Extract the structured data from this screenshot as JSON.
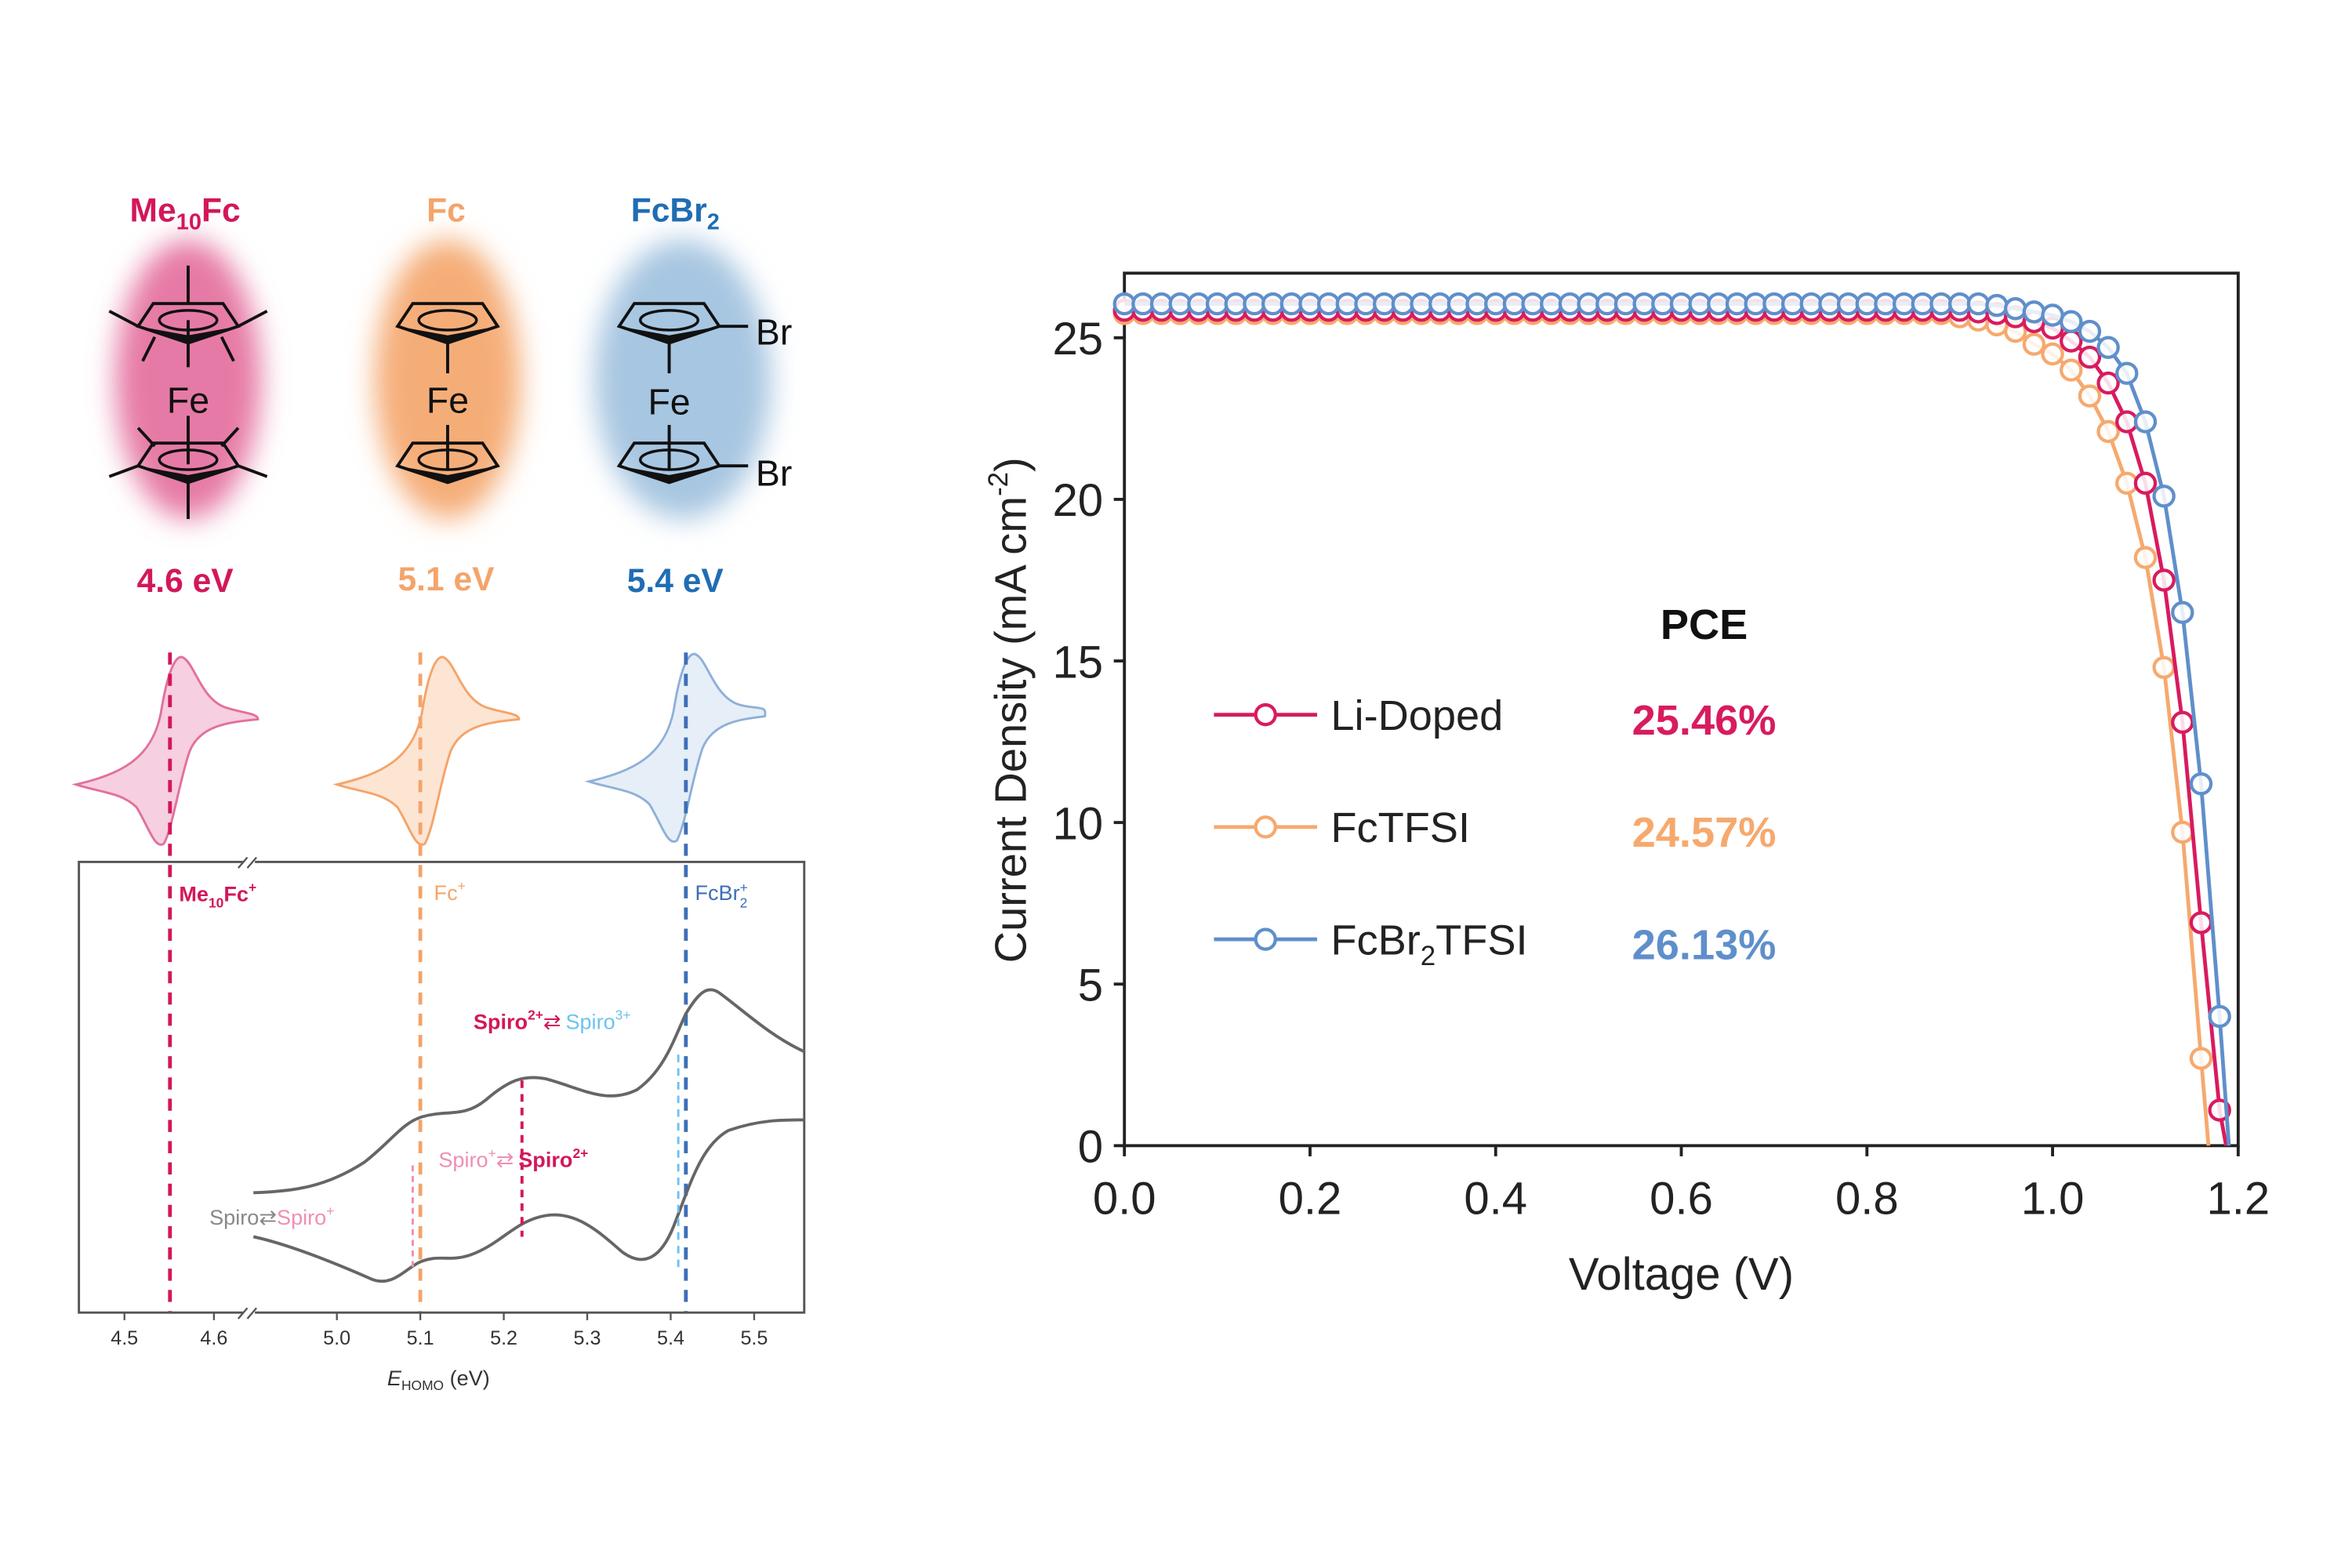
{
  "molecules": [
    {
      "name_base": "Me",
      "name_sub": "10",
      "name_tail": "Fc",
      "energy": "4.6 eV",
      "color": "#d3175b",
      "glow": "#e67aa6"
    },
    {
      "name_base": "Fc",
      "name_sub": "",
      "name_tail": "",
      "energy": "5.1 eV",
      "color": "#f4a46a",
      "glow": "#f5ad78"
    },
    {
      "name_base": "FcBr",
      "name_sub": "2",
      "name_tail": "",
      "energy": "5.4 eV",
      "color": "#1f6db4",
      "glow": "#a7c6e1"
    }
  ],
  "atoms": {
    "fe": "Fe",
    "br": "Br"
  },
  "energy_panel": {
    "xlabel_main": "E",
    "xlabel_sub": "HOMO",
    "xlabel_unit": " (eV)",
    "ticks": [
      "4.5",
      "4.6",
      "5.0",
      "5.1",
      "5.2",
      "5.3",
      "5.4",
      "5.5"
    ],
    "cation_labels": [
      {
        "base": "Me",
        "sub": "10",
        "tail": "Fc",
        "sup": "+"
      },
      {
        "base": "Fc",
        "sub": "",
        "tail": "",
        "sup": "+"
      },
      {
        "base": "FcBr",
        "sub": "2",
        "tail": "",
        "sup": "+"
      }
    ],
    "annotations": {
      "a1_left": "Spiro",
      "a1_left_sup": "2+",
      "a1_right": "Spiro",
      "a1_right_sup": "3+",
      "a2_left": "Spiro",
      "a2_left_sup": "+",
      "a2_right": "Spiro",
      "a2_right_sup": "2+",
      "a3_left": "Spiro",
      "a3_right": "Spiro",
      "a3_right_sup": "+",
      "arrow": "⇄"
    }
  },
  "chart_data": {
    "type": "line",
    "title": "",
    "xlabel": "Voltage (V)",
    "ylabel_main": "Current Density (mA cm",
    "ylabel_sup": "-2",
    "ylabel_end": ")",
    "xlim": [
      0,
      1.2
    ],
    "ylim": [
      0,
      27
    ],
    "xticks": [
      "0.0",
      "0.2",
      "0.4",
      "0.6",
      "0.8",
      "1.0",
      "1.2"
    ],
    "yticks": [
      "0",
      "5",
      "10",
      "15",
      "20",
      "25"
    ],
    "legend_title": "PCE",
    "legend_position": "center",
    "x_start": 0,
    "x_step": 0.02,
    "series": [
      {
        "name": "Li-Doped",
        "name_sub": "",
        "name_tail": "",
        "pce": "25.46%",
        "color": "#d81b5f",
        "voc": 1.187,
        "y": [
          25.85,
          25.85,
          25.85,
          25.85,
          25.85,
          25.85,
          25.85,
          25.85,
          25.85,
          25.85,
          25.85,
          25.85,
          25.85,
          25.85,
          25.85,
          25.85,
          25.85,
          25.85,
          25.85,
          25.85,
          25.85,
          25.85,
          25.85,
          25.85,
          25.85,
          25.85,
          25.85,
          25.85,
          25.85,
          25.85,
          25.85,
          25.85,
          25.85,
          25.85,
          25.85,
          25.85,
          25.85,
          25.85,
          25.85,
          25.85,
          25.85,
          25.85,
          25.85,
          25.85,
          25.85,
          25.85,
          25.8,
          25.75,
          25.65,
          25.5,
          25.3,
          24.9,
          24.4,
          23.6,
          22.4,
          20.5,
          17.5,
          13.1,
          6.9,
          1.1
        ]
      },
      {
        "name": "FcTFSI",
        "name_sub": "",
        "name_tail": "",
        "pce": "24.57%",
        "color": "#f6a96e",
        "voc": 1.168,
        "y": [
          25.75,
          25.75,
          25.75,
          25.75,
          25.75,
          25.75,
          25.75,
          25.75,
          25.75,
          25.75,
          25.75,
          25.75,
          25.75,
          25.75,
          25.75,
          25.75,
          25.75,
          25.75,
          25.75,
          25.75,
          25.75,
          25.75,
          25.75,
          25.75,
          25.75,
          25.75,
          25.75,
          25.75,
          25.75,
          25.75,
          25.75,
          25.75,
          25.75,
          25.75,
          25.75,
          25.75,
          25.75,
          25.75,
          25.75,
          25.75,
          25.75,
          25.75,
          25.75,
          25.75,
          25.75,
          25.65,
          25.55,
          25.4,
          25.2,
          24.8,
          24.5,
          24.0,
          23.2,
          22.1,
          20.5,
          18.2,
          14.8,
          9.7,
          2.7
        ]
      },
      {
        "name": "FcBr",
        "name_sub": "2",
        "name_tail": "TFSI",
        "pce": "26.13%",
        "color": "#5f8fcb",
        "voc": 1.19,
        "y": [
          26.05,
          26.05,
          26.05,
          26.05,
          26.05,
          26.05,
          26.05,
          26.05,
          26.05,
          26.05,
          26.05,
          26.05,
          26.05,
          26.05,
          26.05,
          26.05,
          26.05,
          26.05,
          26.05,
          26.05,
          26.05,
          26.05,
          26.05,
          26.05,
          26.05,
          26.05,
          26.05,
          26.05,
          26.05,
          26.05,
          26.05,
          26.05,
          26.05,
          26.05,
          26.05,
          26.05,
          26.05,
          26.05,
          26.05,
          26.05,
          26.05,
          26.05,
          26.05,
          26.05,
          26.05,
          26.05,
          26.05,
          26.0,
          25.9,
          25.8,
          25.7,
          25.5,
          25.2,
          24.7,
          23.9,
          22.4,
          20.1,
          16.5,
          11.2,
          4.0
        ]
      }
    ]
  }
}
